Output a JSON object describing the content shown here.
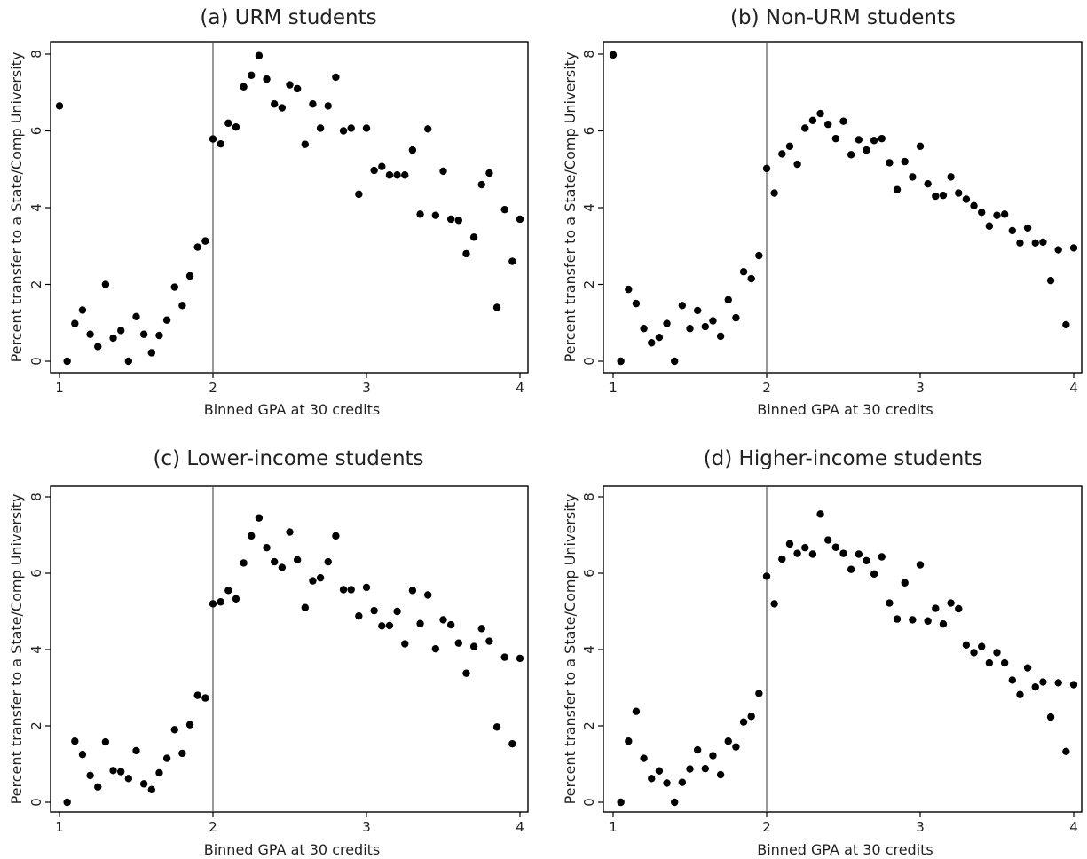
{
  "chart_data": [
    {
      "type": "scatter",
      "title": "(a) URM students",
      "xlabel": "Binned GPA at 30 credits",
      "ylabel": "Percent transfer to a State/Comp University",
      "xlim": [
        1,
        4
      ],
      "ylim": [
        0,
        8
      ],
      "xticks": [
        "1",
        "2",
        "3",
        "4"
      ],
      "yticks": [
        "0",
        "2",
        "4",
        "6",
        "8"
      ],
      "cutoff": 2,
      "x": [
        1.0,
        1.05,
        1.1,
        1.15,
        1.2,
        1.25,
        1.3,
        1.35,
        1.4,
        1.45,
        1.5,
        1.55,
        1.6,
        1.65,
        1.7,
        1.75,
        1.8,
        1.85,
        1.9,
        1.95,
        2.0,
        2.05,
        2.1,
        2.15,
        2.2,
        2.25,
        2.3,
        2.35,
        2.4,
        2.45,
        2.5,
        2.55,
        2.6,
        2.65,
        2.7,
        2.75,
        2.8,
        2.85,
        2.9,
        2.95,
        3.0,
        3.05,
        3.1,
        3.15,
        3.2,
        3.25,
        3.3,
        3.35,
        3.4,
        3.45,
        3.5,
        3.55,
        3.6,
        3.65,
        3.7,
        3.75,
        3.8,
        3.85,
        3.9,
        3.95,
        4.0
      ],
      "y": [
        6.65,
        0.0,
        0.98,
        1.33,
        0.7,
        0.38,
        2.0,
        0.6,
        0.8,
        0.0,
        1.16,
        0.7,
        0.22,
        0.67,
        1.07,
        1.93,
        1.45,
        2.22,
        2.97,
        3.13,
        5.79,
        5.66,
        6.2,
        6.1,
        7.15,
        7.45,
        7.96,
        7.35,
        6.7,
        6.6,
        7.2,
        7.1,
        5.65,
        6.7,
        6.07,
        6.65,
        7.4,
        6.0,
        6.07,
        4.35,
        6.07,
        4.97,
        5.07,
        4.85,
        4.85,
        4.85,
        5.5,
        3.83,
        6.05,
        3.8,
        4.95,
        3.7,
        3.67,
        2.8,
        3.23,
        4.6,
        4.9,
        1.4,
        3.95,
        2.6,
        3.7
      ]
    },
    {
      "type": "scatter",
      "title": "(b) Non-URM students",
      "xlabel": "Binned GPA at 30 credits",
      "ylabel": "Percent transfer to a State/Comp University",
      "xlim": [
        1,
        4
      ],
      "ylim": [
        0,
        8
      ],
      "xticks": [
        "1",
        "2",
        "3",
        "4"
      ],
      "yticks": [
        "0",
        "2",
        "4",
        "6",
        "8"
      ],
      "cutoff": 2,
      "x": [
        1.0,
        1.05,
        1.1,
        1.15,
        1.2,
        1.25,
        1.3,
        1.35,
        1.4,
        1.45,
        1.5,
        1.55,
        1.6,
        1.65,
        1.7,
        1.75,
        1.8,
        1.85,
        1.9,
        1.95,
        2.0,
        2.05,
        2.1,
        2.15,
        2.2,
        2.25,
        2.3,
        2.35,
        2.4,
        2.45,
        2.5,
        2.55,
        2.6,
        2.65,
        2.7,
        2.75,
        2.8,
        2.85,
        2.9,
        2.95,
        3.0,
        3.05,
        3.1,
        3.15,
        3.2,
        3.25,
        3.3,
        3.35,
        3.4,
        3.45,
        3.5,
        3.55,
        3.6,
        3.65,
        3.7,
        3.75,
        3.8,
        3.85,
        3.9,
        3.95,
        4.0
      ],
      "y": [
        7.98,
        0.0,
        1.87,
        1.5,
        0.85,
        0.48,
        0.62,
        0.98,
        0.0,
        1.45,
        0.85,
        1.32,
        0.9,
        1.05,
        0.65,
        1.6,
        1.13,
        2.33,
        2.15,
        2.75,
        5.02,
        4.38,
        5.4,
        5.6,
        5.13,
        6.07,
        6.27,
        6.45,
        6.17,
        5.8,
        6.25,
        5.38,
        5.77,
        5.5,
        5.75,
        5.8,
        5.17,
        4.47,
        5.2,
        4.8,
        5.6,
        4.62,
        4.3,
        4.32,
        4.8,
        4.38,
        4.22,
        4.05,
        3.88,
        3.52,
        3.8,
        3.83,
        3.4,
        3.08,
        3.47,
        3.08,
        3.1,
        2.1,
        2.9,
        0.95,
        2.95
      ]
    },
    {
      "type": "scatter",
      "title": "(c) Lower-income students",
      "xlabel": "Binned GPA at 30 credits",
      "ylabel": "Percent transfer to a State/Comp University",
      "xlim": [
        1,
        4
      ],
      "ylim": [
        0,
        8
      ],
      "xticks": [
        "1",
        "2",
        "3",
        "4"
      ],
      "yticks": [
        "0",
        "2",
        "4",
        "6",
        "8"
      ],
      "cutoff": 2,
      "x": [
        1.05,
        1.1,
        1.15,
        1.2,
        1.25,
        1.3,
        1.35,
        1.4,
        1.45,
        1.5,
        1.55,
        1.6,
        1.65,
        1.7,
        1.75,
        1.8,
        1.85,
        1.9,
        1.95,
        2.0,
        2.05,
        2.1,
        2.15,
        2.2,
        2.25,
        2.3,
        2.35,
        2.4,
        2.45,
        2.5,
        2.55,
        2.6,
        2.65,
        2.7,
        2.75,
        2.8,
        2.85,
        2.9,
        2.95,
        3.0,
        3.05,
        3.1,
        3.15,
        3.2,
        3.25,
        3.3,
        3.35,
        3.4,
        3.45,
        3.5,
        3.55,
        3.6,
        3.65,
        3.7,
        3.75,
        3.8,
        3.85,
        3.9,
        3.95,
        4.0
      ],
      "y": [
        0.0,
        1.6,
        1.25,
        0.7,
        0.4,
        1.58,
        0.83,
        0.8,
        0.62,
        1.35,
        0.48,
        0.33,
        0.77,
        1.15,
        1.9,
        1.28,
        2.03,
        2.8,
        2.73,
        5.2,
        5.25,
        5.55,
        5.33,
        6.27,
        6.98,
        7.45,
        6.67,
        6.3,
        6.15,
        7.08,
        6.35,
        5.1,
        5.8,
        5.88,
        6.3,
        6.98,
        5.57,
        5.57,
        4.88,
        5.63,
        5.02,
        4.62,
        4.63,
        5.0,
        4.15,
        5.55,
        4.68,
        5.43,
        4.02,
        4.78,
        4.65,
        4.17,
        3.38,
        4.08,
        4.55,
        4.22,
        1.97,
        3.8,
        1.53,
        3.77
      ]
    },
    {
      "type": "scatter",
      "title": "(d) Higher-income students",
      "xlabel": "Binned GPA at 30 credits",
      "ylabel": "Percent transfer to a State/Comp University",
      "xlim": [
        1,
        4
      ],
      "ylim": [
        0,
        8
      ],
      "xticks": [
        "1",
        "2",
        "3",
        "4"
      ],
      "yticks": [
        "0",
        "2",
        "4",
        "6",
        "8"
      ],
      "cutoff": 2,
      "x": [
        1.05,
        1.1,
        1.15,
        1.2,
        1.25,
        1.3,
        1.35,
        1.4,
        1.45,
        1.5,
        1.55,
        1.6,
        1.65,
        1.7,
        1.75,
        1.8,
        1.85,
        1.9,
        1.95,
        2.0,
        2.05,
        2.1,
        2.15,
        2.2,
        2.25,
        2.3,
        2.35,
        2.4,
        2.45,
        2.5,
        2.55,
        2.6,
        2.65,
        2.7,
        2.75,
        2.8,
        2.85,
        2.9,
        2.95,
        3.0,
        3.05,
        3.1,
        3.15,
        3.2,
        3.25,
        3.3,
        3.35,
        3.4,
        3.45,
        3.5,
        3.55,
        3.6,
        3.65,
        3.7,
        3.75,
        3.8,
        3.85,
        3.9,
        3.95,
        4.0
      ],
      "y": [
        0.0,
        1.6,
        2.38,
        1.15,
        0.62,
        0.82,
        0.5,
        0.0,
        0.52,
        0.87,
        1.37,
        0.88,
        1.22,
        0.72,
        1.6,
        1.45,
        2.1,
        2.25,
        2.85,
        5.92,
        5.2,
        6.37,
        6.77,
        6.52,
        6.67,
        6.5,
        7.55,
        6.87,
        6.68,
        6.52,
        6.1,
        6.5,
        6.33,
        5.98,
        6.43,
        5.22,
        4.8,
        5.75,
        4.78,
        6.22,
        4.75,
        5.08,
        4.67,
        5.22,
        5.07,
        4.12,
        3.92,
        4.08,
        3.65,
        3.92,
        3.65,
        3.2,
        2.82,
        3.52,
        3.02,
        3.15,
        2.23,
        3.13,
        1.33,
        3.08
      ]
    }
  ]
}
